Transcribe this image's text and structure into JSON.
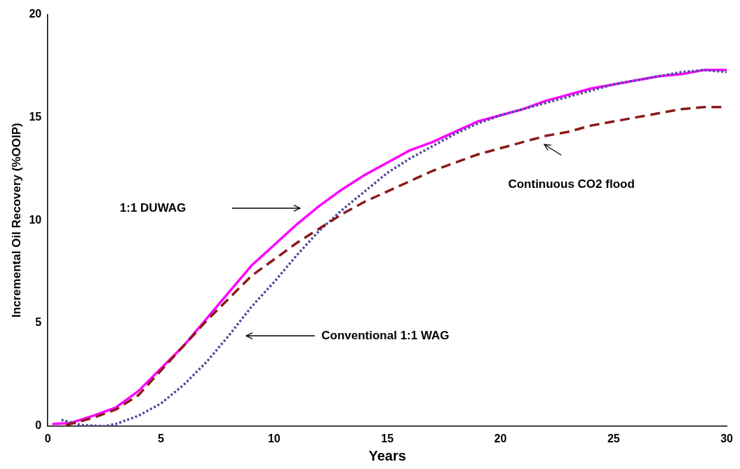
{
  "chart_data": {
    "type": "line",
    "xlabel": "Years",
    "ylabel": "Incremental Oil Recovery (%OOIP)",
    "xlim": [
      0,
      30
    ],
    "xticks": [
      0,
      5,
      10,
      15,
      20,
      25,
      30
    ],
    "ylim": [
      0,
      20
    ],
    "yticks": [
      0,
      5,
      10,
      15,
      20
    ],
    "grid": false,
    "legend": false,
    "marker": "none",
    "series": [
      {
        "color": "#ff00ff",
        "line_style": "solid",
        "x": [
          0.2,
          1,
          2,
          3,
          4,
          5,
          6,
          7,
          8,
          9,
          10,
          11,
          12,
          13,
          14,
          15,
          16,
          17,
          18,
          19,
          20,
          21,
          22,
          23,
          24,
          25,
          26,
          27,
          28,
          29,
          30
        ],
        "values": [
          0.1,
          0.15,
          0.5,
          0.9,
          1.7,
          2.8,
          3.9,
          5.2,
          6.5,
          7.8,
          8.8,
          9.8,
          10.7,
          11.5,
          12.2,
          12.8,
          13.4,
          13.8,
          14.3,
          14.8,
          15.1,
          15.4,
          15.8,
          16.1,
          16.4,
          16.6,
          16.8,
          17.0,
          17.1,
          17.3,
          17.3
        ]
      },
      {
        "color": "#4b4b9e",
        "line_style": "dotted",
        "x": [
          0.6,
          1.5,
          2.5,
          3,
          4,
          5,
          6,
          7,
          8,
          9,
          10,
          11,
          12,
          13,
          14,
          15,
          16,
          17,
          18,
          19,
          20,
          21,
          22,
          23,
          24,
          25,
          26,
          27,
          28,
          29,
          30
        ],
        "values": [
          0.3,
          0.05,
          0,
          0.1,
          0.5,
          1.1,
          2.0,
          3.1,
          4.4,
          5.8,
          7.0,
          8.3,
          9.5,
          10.5,
          11.4,
          12.3,
          13.0,
          13.6,
          14.2,
          14.7,
          15.1,
          15.4,
          15.7,
          16.0,
          16.3,
          16.6,
          16.8,
          17.0,
          17.2,
          17.3,
          17.2
        ]
      },
      {
        "color": "#8b1a1a",
        "line_style": "dashed",
        "x": [
          0.8,
          1,
          2,
          3,
          4,
          5,
          6,
          7,
          8,
          9,
          10,
          11,
          12,
          13,
          14,
          15,
          16,
          17,
          18,
          19,
          20,
          21,
          22,
          23,
          24,
          25,
          26,
          27,
          28,
          29,
          30
        ],
        "values": [
          0.05,
          0.1,
          0.4,
          0.8,
          1.5,
          2.7,
          3.9,
          5.1,
          6.2,
          7.3,
          8.1,
          8.9,
          9.6,
          10.3,
          10.9,
          11.4,
          11.9,
          12.4,
          12.8,
          13.2,
          13.5,
          13.8,
          14.1,
          14.3,
          14.6,
          14.8,
          15.0,
          15.2,
          15.4,
          15.5,
          15.5
        ]
      }
    ],
    "annotations": [
      "1:1 DUWAG",
      "Conventional 1:1 WAG",
      "Continuous CO2 flood"
    ]
  }
}
